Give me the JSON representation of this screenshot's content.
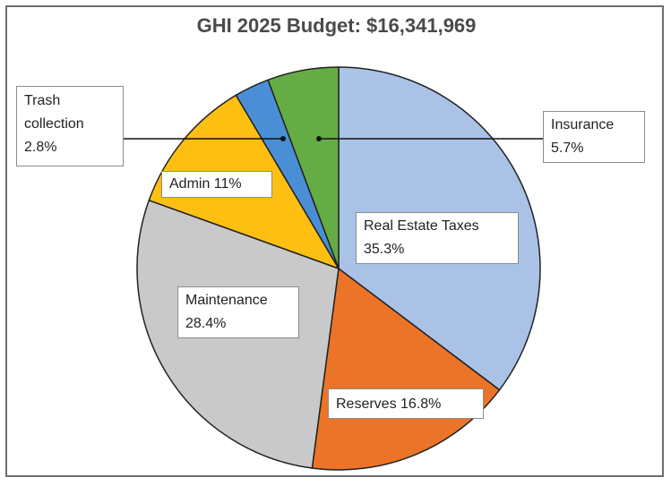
{
  "chart_data": {
    "type": "pie",
    "title": "GHI 2025 Budget: $16,341,969",
    "slices": [
      {
        "name": "Real Estate Taxes",
        "label": "Real Estate Taxes\n35.3%",
        "value": 35.3,
        "color": "#a9c2e6"
      },
      {
        "name": "Reserves",
        "label": "Reserves 16.8%",
        "value": 16.8,
        "color": "#ec7428"
      },
      {
        "name": "Maintenance",
        "label": "Maintenance\n28.4%",
        "value": 28.4,
        "color": "#c9c9c9"
      },
      {
        "name": "Admin",
        "label": "Admin 11%",
        "value": 11.0,
        "color": "#fdbf12"
      },
      {
        "name": "Trash collection",
        "label": "Trash\ncollection\n2.8%",
        "value": 2.8,
        "color": "#4a8fd6"
      },
      {
        "name": "Insurance",
        "label": "Insurance\n5.7%",
        "value": 5.7,
        "color": "#66ac44"
      }
    ]
  }
}
